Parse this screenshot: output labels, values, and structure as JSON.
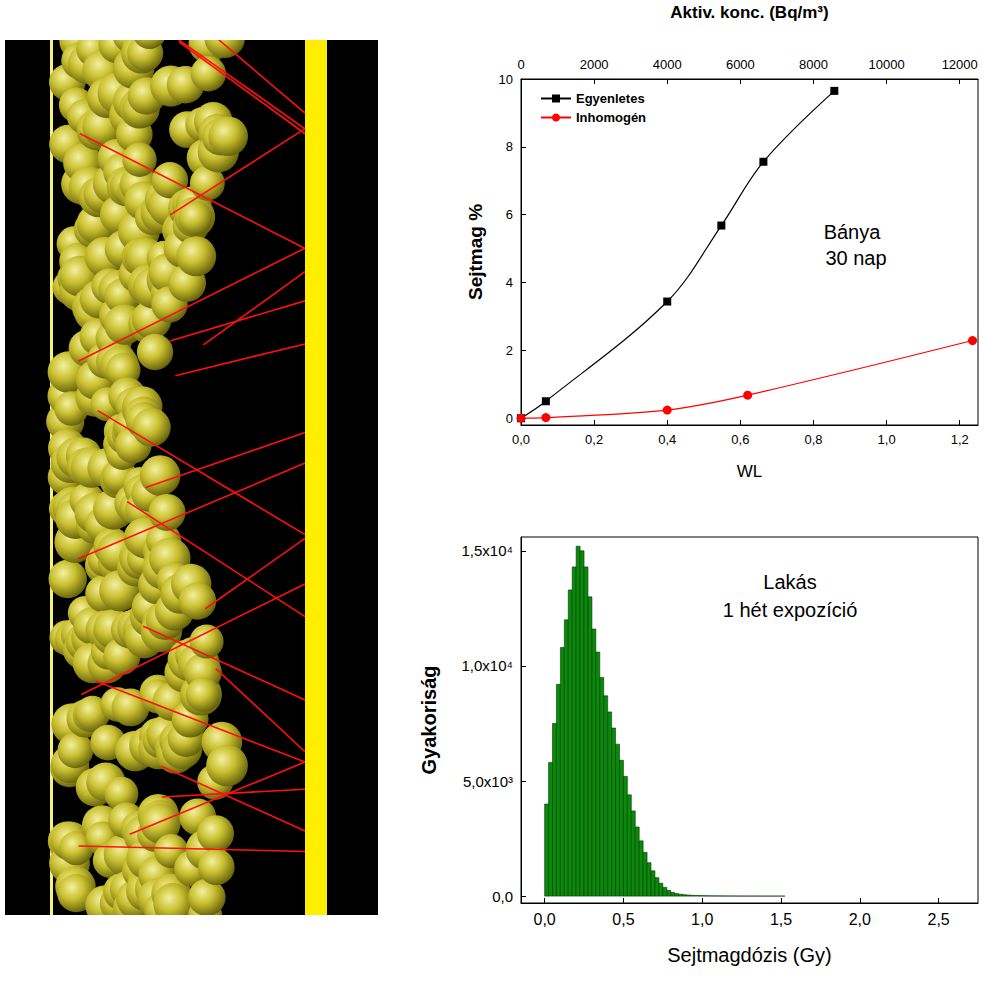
{
  "chart_data": [
    {
      "type": "line",
      "x2label": "Aktiv. konc. (Bq/m³)",
      "xlabel": "WL",
      "ylabel": "Sejtmag %",
      "annotations": [
        "Bánya",
        "30 nap"
      ],
      "xlim": [
        0,
        1.25
      ],
      "xticks": [
        {
          "value": 0,
          "label": "0,0"
        },
        {
          "value": 0.2,
          "label": "0,2"
        },
        {
          "value": 0.4,
          "label": "0,4"
        },
        {
          "value": 0.6,
          "label": "0,6"
        },
        {
          "value": 0.8,
          "label": "0,8"
        },
        {
          "value": 1.0,
          "label": "1,0"
        },
        {
          "value": 1.2,
          "label": "1,2"
        }
      ],
      "x2lim": [
        0,
        12500
      ],
      "x2ticks": [
        0,
        2000,
        4000,
        6000,
        8000,
        10000,
        12000
      ],
      "ylim": [
        -0.2,
        10
      ],
      "yticks": [
        0,
        2,
        4,
        6,
        8,
        10
      ],
      "legend": "upper left",
      "series": [
        {
          "name": "Egyenletes",
          "color": "#000000",
          "marker": "square",
          "line_style": "solid",
          "x": [
            0,
            0.068,
            0.4,
            0.548,
            0.663,
            0.857
          ],
          "values": [
            0,
            0.5,
            3.44,
            5.68,
            7.56,
            9.65
          ]
        },
        {
          "name": "Inhomogén",
          "color": "#ff0000",
          "marker": "circle",
          "line_style": "solid",
          "x": [
            0,
            0.068,
            0.4,
            0.62,
            1.235
          ],
          "values": [
            0,
            0.02,
            0.24,
            0.68,
            2.29
          ]
        }
      ]
    },
    {
      "type": "histogram",
      "xlabel": "Sejtmagdózis (Gy)",
      "ylabel": "Gyakoriság",
      "annotations": [
        "Lakás",
        "1 hét expozíció"
      ],
      "color": "#0a8a0a",
      "bins": [
        0,
        0.025,
        0.05,
        0.075,
        0.1,
        0.125,
        0.15,
        0.175,
        0.2,
        0.225,
        0.25,
        0.275,
        0.3,
        0.325,
        0.35,
        0.375,
        0.4,
        0.425,
        0.45,
        0.475,
        0.5,
        0.525,
        0.55,
        0.575,
        0.6,
        0.625,
        0.65,
        0.675,
        0.7,
        0.725,
        0.75,
        0.775,
        0.8,
        0.825,
        0.85,
        0.875,
        0.9,
        0.925,
        0.95,
        0.975,
        1.0,
        1.025,
        1.05,
        1.075,
        1.1,
        1.125,
        1.15,
        1.175,
        1.2,
        1.225,
        1.25,
        1.275,
        1.3,
        1.325,
        1.35,
        1.375,
        1.4,
        1.425,
        1.45,
        1.475,
        1.5,
        1.525
      ],
      "counts": [
        4000,
        5800,
        7500,
        9200,
        10800,
        12000,
        13300,
        14300,
        15200,
        15000,
        14300,
        13000,
        11600,
        10600,
        9500,
        8700,
        8000,
        7300,
        6600,
        5900,
        5200,
        4400,
        3700,
        3000,
        2400,
        1900,
        1450,
        1100,
        800,
        560,
        380,
        250,
        160,
        110,
        80,
        60,
        45,
        35,
        28,
        22,
        18,
        15,
        12,
        10,
        9,
        8,
        7,
        6,
        5,
        5,
        4,
        4,
        3,
        3,
        3,
        2,
        2,
        2,
        1,
        1,
        1
      ],
      "xlim": [
        -0.15,
        2.75
      ],
      "xticks": [
        {
          "value": 0,
          "label": "0,0"
        },
        {
          "value": 0.5,
          "label": "0,5"
        },
        {
          "value": 1.0,
          "label": "1,0"
        },
        {
          "value": 1.5,
          "label": "1,5"
        },
        {
          "value": 2.0,
          "label": "2,0"
        },
        {
          "value": 2.5,
          "label": "2,5"
        }
      ],
      "ylim": [
        -300,
        15600
      ],
      "yticks": [
        {
          "value": 0,
          "label": "0,0"
        },
        {
          "value": 5000,
          "label": "5,0x10³"
        },
        {
          "value": 10000,
          "label": "1,0x10⁴"
        },
        {
          "value": 15000,
          "label": "1,5x10⁴"
        }
      ]
    }
  ]
}
